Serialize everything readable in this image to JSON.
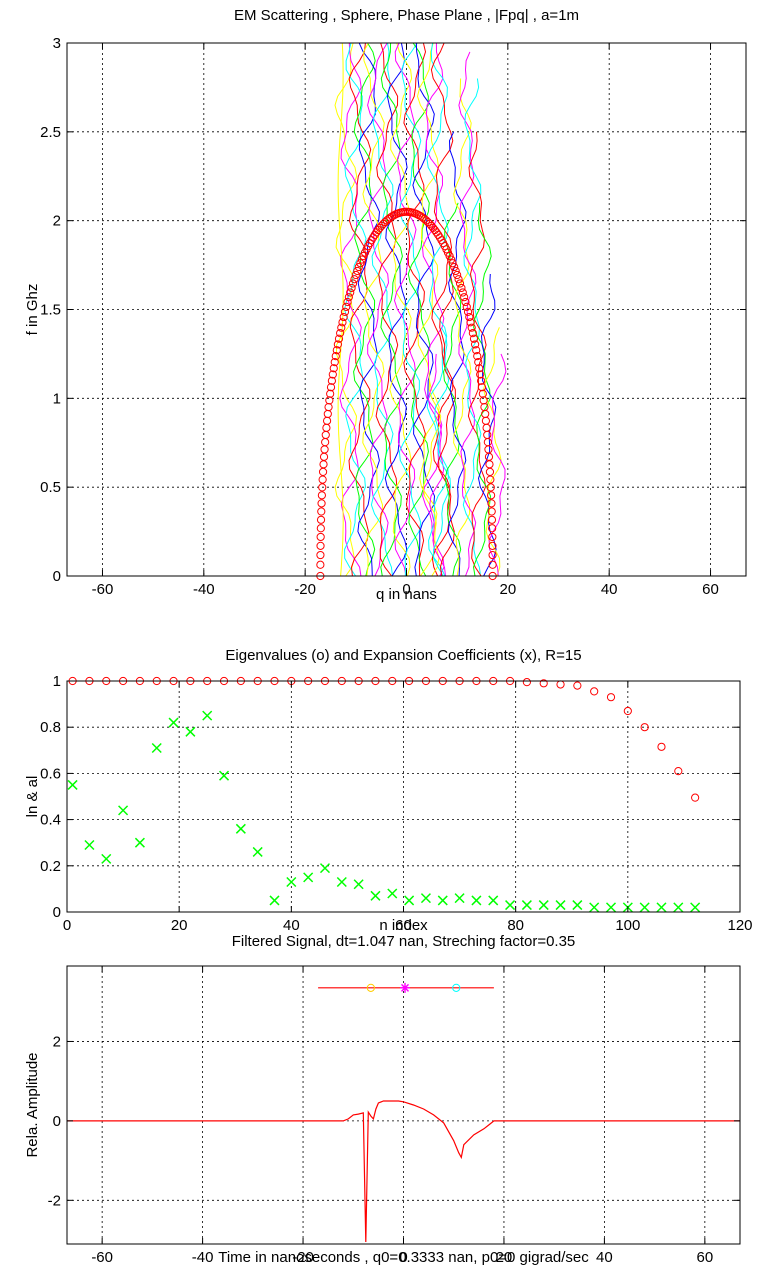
{
  "chart_data": [
    {
      "type": "contour",
      "title": "EM Scattering , Sphere, Phase Plane   , |Fpq| , a=1m",
      "xlabel": "q in nans",
      "ylabel": "f in Ghz",
      "xlim": [
        -67,
        67
      ],
      "ylim": [
        0,
        3
      ],
      "xticks": [
        -60,
        -40,
        -20,
        0,
        20,
        40,
        60
      ],
      "yticks": [
        0,
        0.5,
        1,
        1.5,
        2,
        2.5,
        3
      ],
      "xtick_labels": [
        "-60",
        "-40",
        "-20",
        "0",
        "20",
        "40",
        "60"
      ],
      "ytick_labels": [
        "0",
        "0.5",
        "1",
        "1.5",
        "2",
        "2.5",
        "3"
      ],
      "grid": true,
      "contour_colors": [
        "#ffff00",
        "#ff00ff",
        "#00ffff",
        "#ff0000",
        "#00ff00",
        "#0000ff"
      ],
      "marker_color": "#ff0000",
      "boundary_curve": {
        "name": "circle markers",
        "peak": [
          0,
          2.05
        ],
        "half_width_at_zero": 17
      }
    },
    {
      "type": "scatter",
      "title": "Eigenvalues (o) and Expansion Coefficients (x), R=15",
      "xlabel": "n index",
      "ylabel": "ln & al",
      "xlim": [
        0,
        120
      ],
      "ylim": [
        0,
        1
      ],
      "xticks": [
        0,
        20,
        40,
        60,
        80,
        100,
        120
      ],
      "yticks": [
        0,
        0.2,
        0.4,
        0.6,
        0.8,
        1
      ],
      "xtick_labels": [
        "0",
        "20",
        "40",
        "60",
        "80",
        "100",
        "120"
      ],
      "ytick_labels": [
        "0",
        "0.2",
        "0.4",
        "0.6",
        "0.8",
        "1"
      ],
      "grid": true,
      "x": [
        1,
        4,
        7,
        10,
        13,
        16,
        19,
        22,
        25,
        28,
        31,
        34,
        37,
        40,
        43,
        46,
        49,
        52,
        55,
        58,
        61,
        64,
        67,
        70,
        73,
        76,
        79,
        82,
        85,
        88,
        91,
        94,
        97,
        100,
        103,
        106,
        109,
        112
      ],
      "series": [
        {
          "marker": "o",
          "color": "#ff0000",
          "values": [
            1,
            1,
            1,
            1,
            1,
            1,
            1,
            1,
            1,
            1,
            1,
            1,
            1,
            1,
            1,
            1,
            1,
            1,
            1,
            1,
            1,
            1,
            1,
            1,
            1,
            1,
            1,
            0.995,
            0.99,
            0.985,
            0.98,
            0.955,
            0.93,
            0.87,
            0.8,
            0.715,
            0.61,
            0.495
          ]
        },
        {
          "marker": "x",
          "color": "#00ff00",
          "values": [
            0.55,
            0.29,
            0.23,
            0.44,
            0.3,
            0.71,
            0.82,
            0.78,
            0.85,
            0.59,
            0.36,
            0.26,
            0.05,
            0.13,
            0.15,
            0.19,
            0.13,
            0.12,
            0.07,
            0.08,
            0.05,
            0.06,
            0.05,
            0.06,
            0.05,
            0.05,
            0.03,
            0.03,
            0.03,
            0.03,
            0.03,
            0.02,
            0.02,
            0.02,
            0.02,
            0.02,
            0.02,
            0.02
          ]
        }
      ]
    },
    {
      "type": "line",
      "title": "Filtered Signal, dt=1.047 nan, Streching factor=0.35",
      "xlabel": "Time in nanoseconds , q0=0.3333 nan, p0=0 gigrad/sec",
      "ylabel": "Rela. Amplitude",
      "xlim": [
        -67,
        67
      ],
      "ylim": [
        -3.1,
        3.9
      ],
      "xticks": [
        -60,
        -40,
        -20,
        0,
        20,
        40,
        60
      ],
      "yticks": [
        -2,
        0,
        2
      ],
      "xtick_labels": [
        "-60",
        "-40",
        "-20",
        "0",
        "20",
        "40",
        "60"
      ],
      "ytick_labels": [
        "-2",
        "0",
        "2"
      ],
      "grid": true,
      "series": [
        {
          "color": "#ff0000",
          "x": [
            -67,
            -12,
            -11,
            -10,
            -9,
            -8,
            -7.5,
            -7,
            -6.5,
            -6,
            -5.5,
            -5,
            -4,
            -3,
            -2,
            -1,
            0,
            2,
            4,
            6,
            8,
            10,
            11,
            11.5,
            12,
            14,
            16,
            17,
            18,
            67
          ],
          "y": [
            0,
            0,
            0.05,
            0.15,
            0.17,
            0.2,
            -3.05,
            0.22,
            0.12,
            0.05,
            0.3,
            0.45,
            0.5,
            0.5,
            0.5,
            0.5,
            0.48,
            0.4,
            0.3,
            0.15,
            -0.05,
            -0.5,
            -0.8,
            -0.92,
            -0.6,
            -0.35,
            -0.2,
            -0.1,
            0,
            0
          ]
        },
        {
          "name": "reference line",
          "color": "#ff0000",
          "x": [
            -17,
            18
          ],
          "y": [
            3.35,
            3.35
          ]
        }
      ],
      "markers": [
        {
          "x": -6.5,
          "y": 3.35,
          "symbol": "o",
          "color": "#ffcc00"
        },
        {
          "x": 0.3,
          "y": 3.35,
          "symbol": "*",
          "color": "#ff00ff"
        },
        {
          "x": 10.5,
          "y": 3.35,
          "symbol": "o",
          "color": "#00ffff"
        }
      ]
    }
  ]
}
